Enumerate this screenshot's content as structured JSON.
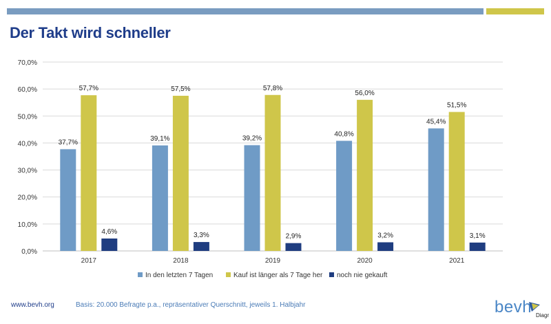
{
  "header": {
    "title": "Der Takt wird schneller"
  },
  "colors": {
    "bar_bar_top": "#7a9cc0",
    "bar_olive": "#cfc64a",
    "title": "#1f3d8a"
  },
  "footer": {
    "url": "www.bevh.org",
    "basis": "Basis: 20.000 Befragte p.a., repräsentativer Querschnitt, jeweils 1. Halbjahr"
  },
  "logo": {
    "text": "bevh",
    "sub": "Diagr",
    "icon": "flag-icon"
  },
  "chart_data": {
    "type": "bar",
    "categories": [
      "2017",
      "2018",
      "2019",
      "2020",
      "2021"
    ],
    "series": [
      {
        "name": "In den letzten 7 Tagen",
        "values": [
          37.7,
          39.1,
          39.2,
          40.8,
          45.4
        ],
        "labels": [
          "37,7%",
          "39,1%",
          "39,2%",
          "40,8%",
          "45,4%"
        ],
        "color": "#6f9bc6"
      },
      {
        "name": "Kauf ist länger als 7 Tage her",
        "values": [
          57.7,
          57.5,
          57.8,
          56.0,
          51.5
        ],
        "labels": [
          "57,7%",
          "57,5%",
          "57,8%",
          "56,0%",
          "51,5%"
        ],
        "color": "#cfc64a"
      },
      {
        "name": "noch nie gekauft",
        "values": [
          4.6,
          3.3,
          2.9,
          3.2,
          3.1
        ],
        "labels": [
          "4,6%",
          "3,3%",
          "2,9%",
          "3,2%",
          "3,1%"
        ],
        "color": "#1f3d80"
      }
    ],
    "ylim": [
      0,
      70
    ],
    "yticks": [
      0,
      10,
      20,
      30,
      40,
      50,
      60,
      70
    ],
    "ytick_labels": [
      "0,0%",
      "10,0%",
      "20,0%",
      "30,0%",
      "40,0%",
      "50,0%",
      "60,0%",
      "70,0%"
    ],
    "grid": true,
    "legend": "bottom",
    "xlabel": "",
    "ylabel": ""
  }
}
